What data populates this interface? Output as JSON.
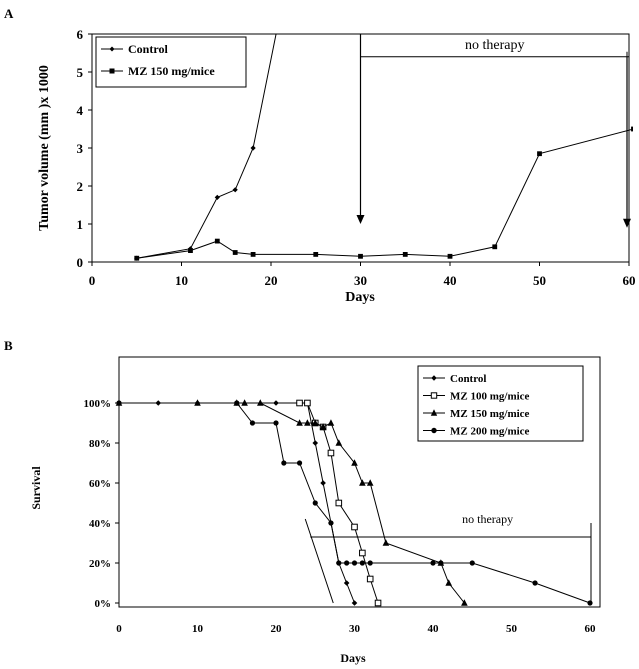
{
  "chart_data": [
    {
      "panel": "A",
      "type": "line",
      "xlabel": "Days",
      "ylabel": "Tumor volume (mm )x 1000",
      "xlim": [
        0,
        60
      ],
      "ylim": [
        0,
        6
      ],
      "xticks": [
        0,
        10,
        20,
        30,
        40,
        50,
        60
      ],
      "yticks": [
        0,
        1,
        2,
        3,
        4,
        5,
        6
      ],
      "legend_position": "top-left",
      "grid": false,
      "series": [
        {
          "name": "Control",
          "marker": "diamond",
          "points": [
            [
              5,
              0.1
            ],
            [
              11,
              0.35
            ],
            [
              14,
              1.7
            ],
            [
              16,
              1.9
            ],
            [
              18,
              3.0
            ],
            [
              21,
              6.5
            ]
          ]
        },
        {
          "name": "MZ 150 mg/mice",
          "marker": "square",
          "points": [
            [
              5,
              0.1
            ],
            [
              11,
              0.3
            ],
            [
              14,
              0.55
            ],
            [
              16,
              0.25
            ],
            [
              18,
              0.2
            ],
            [
              25,
              0.2
            ],
            [
              30,
              0.15
            ],
            [
              35,
              0.2
            ],
            [
              40,
              0.15
            ],
            [
              45,
              0.4
            ],
            [
              50,
              2.85
            ],
            [
              60.5,
              3.5
            ]
          ]
        }
      ],
      "annotations": [
        {
          "text": "no therapy",
          "from_x": 30,
          "to_x": 60,
          "y": 5.4
        }
      ],
      "arrows": [
        {
          "x": 30,
          "from_y": 6,
          "to_y": 1.0
        },
        {
          "x": 60,
          "from_y": 5.4,
          "to_y": 0.9
        }
      ]
    },
    {
      "panel": "B",
      "type": "line",
      "xlabel": "Days",
      "ylabel": "Survival",
      "xlim": [
        0,
        60
      ],
      "ylim": [
        0,
        100
      ],
      "xticks": [
        0,
        10,
        20,
        30,
        40,
        50,
        60
      ],
      "yticks": [
        "0%",
        "20%",
        "40%",
        "60%",
        "80%",
        "100%"
      ],
      "ytick_values": [
        0,
        20,
        40,
        60,
        80,
        100
      ],
      "legend_position": "top-right",
      "grid": false,
      "series": [
        {
          "name": "Control",
          "marker": "diamond",
          "points": [
            [
              0,
              100
            ],
            [
              5,
              100
            ],
            [
              10,
              100
            ],
            [
              15,
              100
            ],
            [
              20,
              100
            ],
            [
              24,
              100
            ],
            [
              25,
              80
            ],
            [
              26,
              60
            ],
            [
              27,
              40
            ],
            [
              28,
              20
            ],
            [
              29,
              10
            ],
            [
              30,
              0
            ]
          ]
        },
        {
          "name": "MZ 100 mg/mice",
          "marker": "open-square",
          "points": [
            [
              23,
              100
            ],
            [
              24,
              100
            ],
            [
              25,
              90
            ],
            [
              26,
              88
            ],
            [
              27,
              75
            ],
            [
              28,
              50
            ],
            [
              30,
              38
            ],
            [
              31,
              25
            ],
            [
              32,
              12
            ],
            [
              33,
              0
            ]
          ]
        },
        {
          "name": "MZ 150 mg/mice",
          "marker": "triangle",
          "points": [
            [
              0,
              100
            ],
            [
              10,
              100
            ],
            [
              15,
              100
            ],
            [
              16,
              100
            ],
            [
              18,
              100
            ],
            [
              23,
              90
            ],
            [
              24,
              90
            ],
            [
              25,
              90
            ],
            [
              26,
              88
            ],
            [
              27,
              90
            ],
            [
              28,
              80
            ],
            [
              30,
              70
            ],
            [
              31,
              60
            ],
            [
              32,
              60
            ],
            [
              34,
              30
            ],
            [
              41,
              20
            ],
            [
              42,
              10
            ],
            [
              44,
              0
            ]
          ]
        },
        {
          "name": "MZ 200 mg/mice",
          "marker": "circle",
          "points": [
            [
              0,
              100
            ],
            [
              15,
              100
            ],
            [
              17,
              90
            ],
            [
              20,
              90
            ],
            [
              21,
              70
            ],
            [
              23,
              70
            ],
            [
              25,
              50
            ],
            [
              27,
              40
            ],
            [
              28,
              20
            ],
            [
              29,
              20
            ],
            [
              30,
              20
            ],
            [
              31,
              20
            ],
            [
              32,
              20
            ],
            [
              40,
              20
            ],
            [
              41,
              20
            ],
            [
              45,
              20
            ],
            [
              53,
              10
            ],
            [
              60,
              0
            ]
          ]
        }
      ],
      "annotations": [
        {
          "text": "no therapy",
          "from_x": 25,
          "to_x": 60,
          "y": 33
        }
      ]
    }
  ],
  "panels": {
    "a_label": "A",
    "b_label": "B"
  }
}
